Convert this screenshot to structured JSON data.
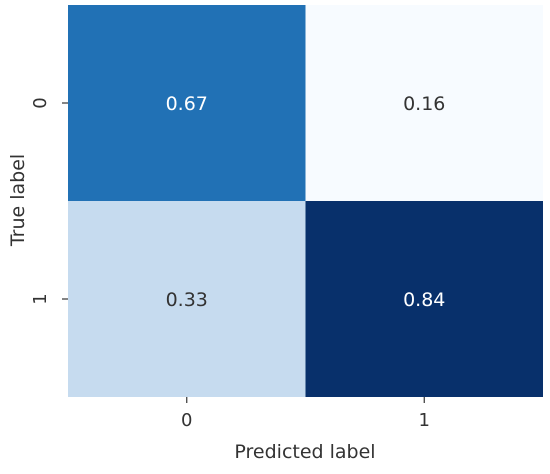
{
  "chart_data": {
    "type": "heatmap",
    "title": "",
    "xlabel": "Predicted label",
    "ylabel": "True label",
    "x_categories": [
      "0",
      "1"
    ],
    "y_categories": [
      "0",
      "1"
    ],
    "values": [
      [
        0.67,
        0.16
      ],
      [
        0.33,
        0.84
      ]
    ],
    "value_labels": [
      [
        "0.67",
        "0.16"
      ],
      [
        "0.33",
        "0.84"
      ]
    ],
    "colormap": "Blues",
    "colors": {
      "low": "#f7fbff",
      "high": "#08306b",
      "text_dark": "#333333",
      "text_light": "#ffffff"
    },
    "grid": false,
    "colorbar": false
  }
}
